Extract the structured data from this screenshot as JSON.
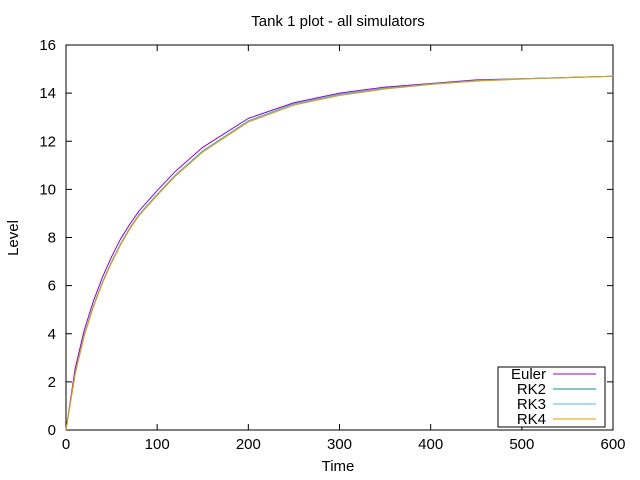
{
  "chart_data": {
    "type": "line",
    "title": "Tank 1 plot - all simulators",
    "xlabel": "Time",
    "ylabel": "Level",
    "xlim": [
      0,
      600
    ],
    "ylim": [
      0,
      16
    ],
    "xticks": [
      0,
      100,
      200,
      300,
      400,
      500,
      600
    ],
    "yticks": [
      0,
      2,
      4,
      6,
      8,
      10,
      12,
      14,
      16
    ],
    "grid": false,
    "legend_position": "bottom-right",
    "x": [
      0,
      10,
      20,
      30,
      40,
      50,
      60,
      70,
      80,
      100,
      120,
      150,
      200,
      250,
      300,
      350,
      400,
      450,
      500,
      550,
      600
    ],
    "series": [
      {
        "name": "Euler",
        "color": "#9400d3",
        "values": [
          0,
          2.55,
          4.15,
          5.35,
          6.35,
          7.2,
          7.95,
          8.55,
          9.1,
          9.95,
          10.75,
          11.75,
          12.95,
          13.6,
          14.0,
          14.25,
          14.4,
          14.55,
          14.6,
          14.65,
          14.7
        ]
      },
      {
        "name": "RK2",
        "color": "#009e73",
        "values": [
          0,
          2.35,
          3.95,
          5.15,
          6.15,
          7.0,
          7.75,
          8.4,
          8.95,
          9.8,
          10.6,
          11.6,
          12.85,
          13.55,
          13.95,
          14.2,
          14.38,
          14.52,
          14.6,
          14.65,
          14.7
        ]
      },
      {
        "name": "RK3",
        "color": "#56b4e9",
        "values": [
          0,
          2.35,
          3.95,
          5.15,
          6.15,
          7.0,
          7.75,
          8.4,
          8.95,
          9.8,
          10.6,
          11.6,
          12.85,
          13.55,
          13.95,
          14.2,
          14.38,
          14.52,
          14.6,
          14.65,
          14.7
        ]
      },
      {
        "name": "RK4",
        "color": "#e69f00",
        "values": [
          0,
          2.3,
          3.9,
          5.1,
          6.1,
          6.95,
          7.7,
          8.35,
          8.9,
          9.75,
          10.55,
          11.55,
          12.8,
          13.5,
          13.9,
          14.17,
          14.36,
          14.5,
          14.58,
          14.64,
          14.7
        ]
      }
    ]
  }
}
